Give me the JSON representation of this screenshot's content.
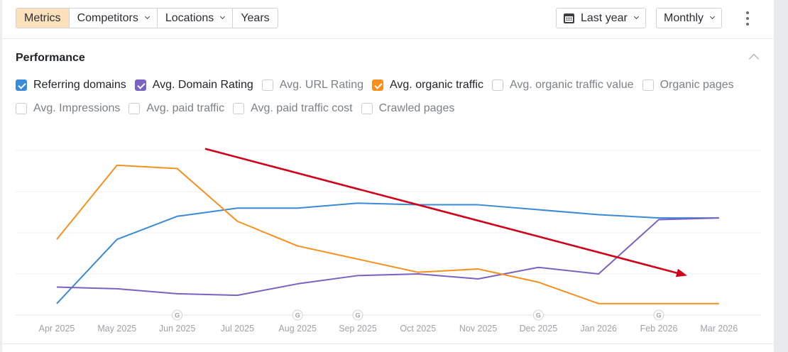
{
  "toolbar": {
    "segments": [
      {
        "label": "Metrics",
        "active": true,
        "dropdown": false
      },
      {
        "label": "Competitors",
        "active": false,
        "dropdown": true
      },
      {
        "label": "Locations",
        "active": false,
        "dropdown": true
      },
      {
        "label": "Years",
        "active": false,
        "dropdown": false
      }
    ],
    "range_label": "Last year",
    "range_icon": "calendar-icon",
    "interval_label": "Monthly",
    "more_icon": "kebab-menu-icon"
  },
  "section": {
    "title": "Performance",
    "collapse_icon": "chevron-up-icon"
  },
  "metrics": {
    "row1": [
      {
        "label": "Referring domains",
        "checked": true,
        "color": "#3a8ad8"
      },
      {
        "label": "Avg. Domain Rating",
        "checked": true,
        "color": "#7b61c1"
      },
      {
        "label": "Avg. URL Rating",
        "checked": false,
        "color": ""
      },
      {
        "label": "Avg. organic traffic",
        "checked": true,
        "color": "#f7901e"
      },
      {
        "label": "Avg. organic traffic value",
        "checked": false,
        "color": ""
      },
      {
        "label": "Organic pages",
        "checked": false,
        "color": ""
      }
    ],
    "row2": [
      {
        "label": "Avg. Impressions",
        "checked": false,
        "color": ""
      },
      {
        "label": "Avg. paid traffic",
        "checked": false,
        "color": ""
      },
      {
        "label": "Avg. paid traffic cost",
        "checked": false,
        "color": ""
      },
      {
        "label": "Crawled pages",
        "checked": false,
        "color": ""
      }
    ]
  },
  "chart_data": {
    "type": "line",
    "title": "",
    "xlabel": "",
    "ylabel": "",
    "y_axis_labels_shown": false,
    "grid": true,
    "gridlines": 5,
    "ylim": [
      0,
      100
    ],
    "y_units": "relative scale (no axis labels shown)",
    "categories": [
      "Apr 2025",
      "May 2025",
      "Jun 2025",
      "Jul 2025",
      "Aug 2025",
      "Sep 2025",
      "Oct 2025",
      "Nov 2025",
      "Dec 2025",
      "Jan 2026",
      "Feb 2026",
      "Mar 2026"
    ],
    "series": [
      {
        "name": "Referring domains",
        "color": "#3a8ad8",
        "values": [
          7,
          46,
          60,
          65,
          65,
          68,
          67,
          67,
          64,
          61,
          59,
          59
        ]
      },
      {
        "name": "Avg. Domain Rating",
        "color": "#7b61c1",
        "values": [
          17,
          16,
          13,
          12,
          19,
          24,
          25,
          22,
          29,
          25,
          58,
          59
        ]
      },
      {
        "name": "Avg. organic traffic",
        "color": "#f7901e",
        "values": [
          46,
          91,
          89,
          57,
          42,
          34,
          26,
          28,
          20,
          7,
          7,
          7
        ]
      }
    ],
    "google_update_markers": [
      "Jun 2025",
      "Aug 2025",
      "Sep 2025",
      "Dec 2025",
      "Feb 2026"
    ],
    "google_marker_label": "G",
    "annotations": [
      {
        "type": "arrow",
        "color": "#d0021b",
        "description": "downward trend arrow",
        "from": {
          "x": "Jul 2025 (early)",
          "y": 101
        },
        "to": {
          "x": "Feb 2026 (mid)",
          "y": 24
        }
      }
    ]
  }
}
